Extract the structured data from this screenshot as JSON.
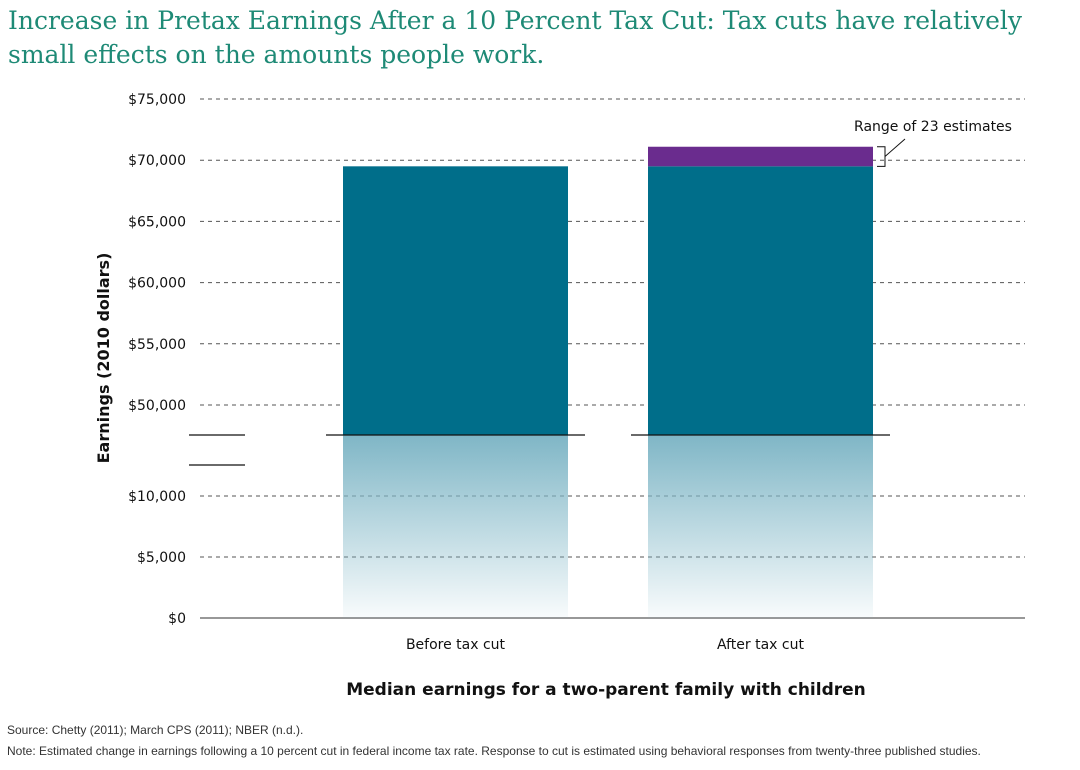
{
  "chart_data": {
    "type": "bar",
    "title": "Increase in Pretax Earnings After a 10 Percent Tax Cut: Tax cuts have relatively small effects on the amounts people work.",
    "ylabel": "Earnings (2010 dollars)",
    "xlabel": "Median earnings for a two-parent family with children",
    "categories": [
      "Before tax cut",
      "After tax cut"
    ],
    "values": [
      69500,
      69500
    ],
    "range_increase": {
      "category": "After tax cut",
      "low": 69500,
      "high": 71100
    },
    "annotation": "Range of 23 estimates",
    "ylim": [
      0,
      75000
    ],
    "axis_break": [
      15000,
      47500
    ],
    "y_ticks_upper": [
      50000,
      55000,
      60000,
      65000,
      70000,
      75000
    ],
    "y_ticks_lower": [
      0,
      5000,
      10000
    ],
    "y_tick_labels": {
      "0": "$0",
      "5000": "$5,000",
      "10000": "$10,000",
      "50000": "$50,000",
      "55000": "$55,000",
      "60000": "$60,000",
      "65000": "$65,000",
      "70000": "$70,000",
      "75000": "$75,000"
    },
    "grid": "dashed",
    "colors": {
      "bar": "#006e8a",
      "range": "#6a2c8e",
      "fade": "#7fb6c6",
      "title": "#1e8a76"
    }
  },
  "footer": {
    "source": "Source: Chetty (2011); March CPS (2011); NBER (n.d.).",
    "note": "Note: Estimated change in earnings following a 10 percent cut in federal income tax rate. Response to cut is estimated using behavioral responses from twenty-three published studies."
  }
}
